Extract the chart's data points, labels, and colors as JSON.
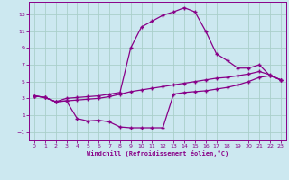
{
  "xlabel": "Windchill (Refroidissement éolien,°C)",
  "background_color": "#cce8f0",
  "grid_color": "#aacfca",
  "line_color": "#880088",
  "xlim": [
    -0.5,
    23.5
  ],
  "ylim": [
    -2,
    14.5
  ],
  "xticks": [
    0,
    1,
    2,
    3,
    4,
    5,
    6,
    7,
    8,
    9,
    10,
    11,
    12,
    13,
    14,
    15,
    16,
    17,
    18,
    19,
    20,
    21,
    22,
    23
  ],
  "yticks": [
    -1,
    1,
    3,
    5,
    7,
    9,
    11,
    13
  ],
  "series1_x": [
    0,
    1,
    2,
    3,
    4,
    5,
    6,
    7,
    8,
    9,
    10,
    11,
    12,
    13,
    14,
    15,
    16,
    17,
    18,
    19,
    20,
    21,
    22,
    23
  ],
  "series1_y": [
    3.3,
    3.1,
    2.6,
    3.0,
    3.1,
    3.2,
    3.3,
    3.5,
    3.7,
    9.0,
    11.5,
    12.2,
    12.9,
    13.3,
    13.8,
    13.3,
    11.0,
    8.3,
    7.5,
    6.6,
    6.6,
    7.0,
    5.7,
    5.2
  ],
  "series2_x": [
    0,
    1,
    2,
    3,
    4,
    5,
    6,
    7,
    8,
    9,
    10,
    11,
    12,
    13,
    14,
    15,
    16,
    17,
    18,
    19,
    20,
    21,
    22,
    23
  ],
  "series2_y": [
    3.3,
    3.1,
    2.6,
    2.7,
    0.6,
    0.3,
    0.4,
    0.2,
    -0.4,
    -0.5,
    -0.5,
    -0.5,
    -0.5,
    3.5,
    3.7,
    3.8,
    3.9,
    4.1,
    4.3,
    4.6,
    5.0,
    5.5,
    5.7,
    5.2
  ],
  "series3_x": [
    0,
    1,
    2,
    3,
    4,
    5,
    6,
    7,
    8,
    9,
    10,
    11,
    12,
    13,
    14,
    15,
    16,
    17,
    18,
    19,
    20,
    21,
    22,
    23
  ],
  "series3_y": [
    3.3,
    3.1,
    2.6,
    2.7,
    2.8,
    2.9,
    3.0,
    3.2,
    3.5,
    3.8,
    4.0,
    4.2,
    4.4,
    4.6,
    4.8,
    5.0,
    5.2,
    5.4,
    5.5,
    5.7,
    5.9,
    6.2,
    5.8,
    5.2
  ]
}
